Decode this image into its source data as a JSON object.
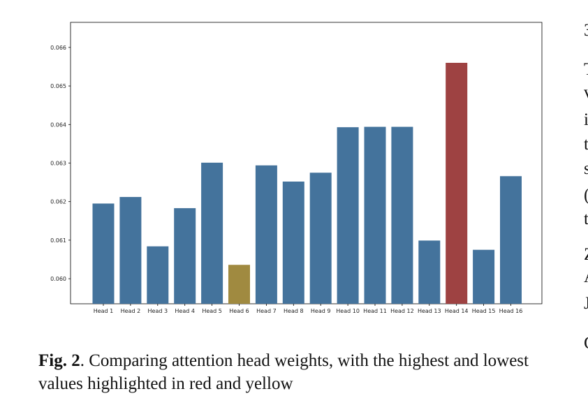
{
  "chart_data": {
    "type": "bar",
    "categories": [
      "Head 1",
      "Head 2",
      "Head 3",
      "Head 4",
      "Head 5",
      "Head 6",
      "Head 7",
      "Head 8",
      "Head 9",
      "Head 10",
      "Head 11",
      "Head 12",
      "Head 13",
      "Head 14",
      "Head 15",
      "Head 16"
    ],
    "values": [
      0.06195,
      0.06212,
      0.06084,
      0.06183,
      0.06301,
      0.06036,
      0.06294,
      0.06252,
      0.06275,
      0.06393,
      0.06394,
      0.06394,
      0.06099,
      0.0656,
      0.06075,
      0.06266
    ],
    "yticks": [
      "0.060",
      "0.061",
      "0.062",
      "0.063",
      "0.064",
      "0.065",
      "0.066"
    ],
    "ylim": [
      0.05935,
      0.06665
    ],
    "grid": false,
    "colors": {
      "default": "#44739c",
      "highest": "#9e4242",
      "lowest": "#a08a40"
    },
    "highlight": {
      "highest": 13,
      "lowest": 5
    }
  },
  "caption": {
    "label": "Fig. 2",
    "text": ".  Comparing attention head weights, with the highest and lowest values highlighted in red and yellow"
  },
  "right_column_fragments": [
    "3",
    "T",
    "v",
    "i",
    "t",
    "s",
    "(",
    "t",
    "Z",
    "A",
    "J",
    "C"
  ]
}
